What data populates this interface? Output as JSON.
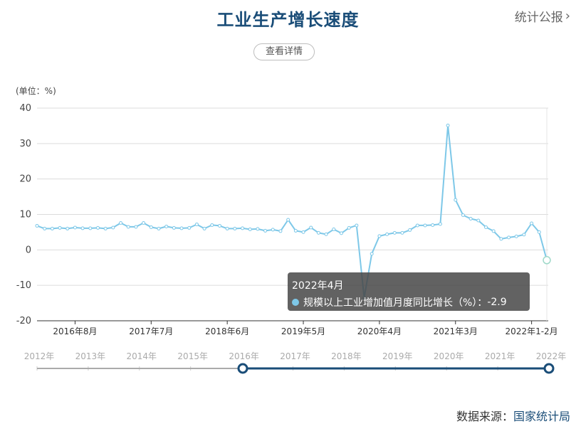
{
  "header": {
    "title": "工业生产增长速度",
    "top_link": "统计公报",
    "detail_button": "查看详情"
  },
  "footer": {
    "source_label": "数据来源：",
    "source_org": "国家统计局"
  },
  "chart_data": {
    "type": "line",
    "title": "工业生产增长速度",
    "unit_label": "(单位：%)",
    "ylim": [
      -20,
      40
    ],
    "yticks": [
      -20,
      -10,
      0,
      10,
      20,
      30,
      40
    ],
    "xtick_labels": [
      "2016年8月",
      "2017年7月",
      "2018年6月",
      "2019年5月",
      "2020年4月",
      "2021年3月",
      "2022年1-2月"
    ],
    "grid": true,
    "series": [
      {
        "name": "规模以上工业增加值月度同比增长（%）",
        "color": "#7ec8e8",
        "x": [
          "2016年3月",
          "2016年4月",
          "2016年5月",
          "2016年6月",
          "2016年7月",
          "2016年8月",
          "2016年9月",
          "2016年10月",
          "2016年11月",
          "2016年12月",
          "2017年1-2月",
          "2017年3月",
          "2017年4月",
          "2017年5月",
          "2017年6月",
          "2017年7月",
          "2017年8月",
          "2017年9月",
          "2017年10月",
          "2017年11月",
          "2017年12月",
          "2018年1-2月",
          "2018年3月",
          "2018年4月",
          "2018年5月",
          "2018年6月",
          "2018年7月",
          "2018年8月",
          "2018年9月",
          "2018年10月",
          "2018年11月",
          "2018年12月",
          "2019年1-2月",
          "2019年3月",
          "2019年4月",
          "2019年5月",
          "2019年6月",
          "2019年7月",
          "2019年8月",
          "2019年9月",
          "2019年10月",
          "2019年11月",
          "2019年12月",
          "2020年1-2月",
          "2020年3月",
          "2020年4月",
          "2020年5月",
          "2020年6月",
          "2020年7月",
          "2020年8月",
          "2020年9月",
          "2020年10月",
          "2020年11月",
          "2020年12月",
          "2021年1-2月",
          "2021年3月",
          "2021年4月",
          "2021年5月",
          "2021年6月",
          "2021年7月",
          "2021年8月",
          "2021年9月",
          "2021年10月",
          "2021年11月",
          "2021年12月",
          "2022年1-2月",
          "2022年3月",
          "2022年4月"
        ],
        "values": [
          6.8,
          6.0,
          6.0,
          6.2,
          6.0,
          6.3,
          6.1,
          6.1,
          6.2,
          6.0,
          6.3,
          7.6,
          6.5,
          6.5,
          7.6,
          6.4,
          6.0,
          6.6,
          6.2,
          6.1,
          6.2,
          7.2,
          6.0,
          7.0,
          6.8,
          6.0,
          6.0,
          6.1,
          5.8,
          5.9,
          5.4,
          5.7,
          5.3,
          8.5,
          5.4,
          5.0,
          6.3,
          4.8,
          4.4,
          5.8,
          4.7,
          6.2,
          6.9,
          -13.5,
          -1.1,
          3.9,
          4.4,
          4.8,
          4.8,
          5.6,
          6.9,
          6.9,
          7.0,
          7.3,
          35.1,
          14.1,
          9.8,
          8.8,
          8.3,
          6.4,
          5.3,
          3.1,
          3.5,
          3.8,
          4.3,
          7.5,
          5.0,
          -2.9
        ]
      }
    ],
    "tooltip": {
      "date": "2022年4月",
      "label": "规模以上工业增加值月度同比增长（%）：",
      "value": "-2.9"
    },
    "slider": {
      "year_labels": [
        "2012年",
        "2013年",
        "2014年",
        "2015年",
        "2016年",
        "2017年",
        "2018年",
        "2019年",
        "2020年",
        "2021年",
        "2022年"
      ]
    }
  }
}
